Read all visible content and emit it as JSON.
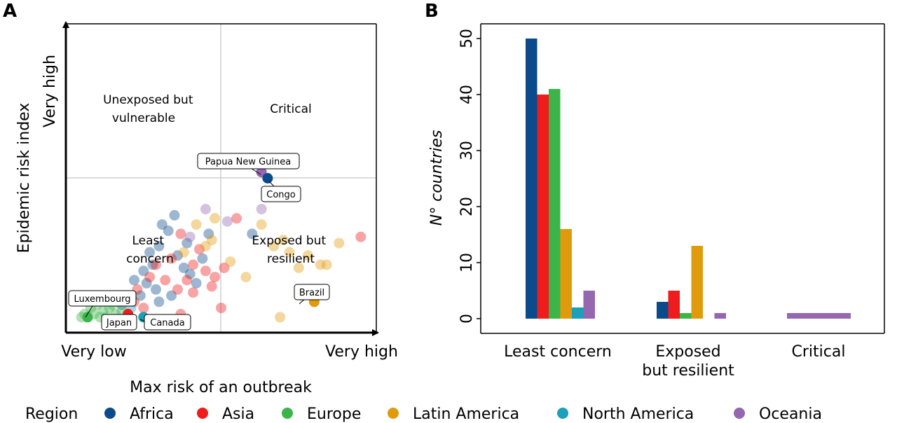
{
  "panels": {
    "a": {
      "letter": "A"
    },
    "b": {
      "letter": "B"
    }
  },
  "legend": {
    "title": "Region",
    "items": [
      {
        "name": "Africa",
        "color": "#0b4a8b"
      },
      {
        "name": "Asia",
        "color": "#ee1c1c"
      },
      {
        "name": "Europe",
        "color": "#3bb54a"
      },
      {
        "name": "Latin America",
        "color": "#e09b0d"
      },
      {
        "name": "North America",
        "color": "#1aa0b8"
      },
      {
        "name": "Oceania",
        "color": "#9467b0"
      }
    ]
  },
  "chart_data": [
    {
      "id": "A",
      "type": "scatter",
      "xlabel": "Max risk of an outbreak",
      "ylabel": "Epidemic risk index",
      "x_tick_labels": [
        "Very low",
        "Very high"
      ],
      "y_tick_labels": [
        "Very high"
      ],
      "xlim": [
        0,
        1
      ],
      "ylim": [
        0,
        1
      ],
      "thresholds": {
        "x": 0.5,
        "y": 0.5
      },
      "quadrant_labels": {
        "top_left": [
          "Unexposed but",
          "vulnerable"
        ],
        "top_right": [
          "Critical"
        ],
        "bottom_left": [
          "Least",
          "concern"
        ],
        "bottom_right": [
          "Exposed but",
          "resilient"
        ]
      },
      "highlighted": [
        {
          "label": "Papua New Guinea",
          "region": "Oceania",
          "x": 0.63,
          "y": 0.52
        },
        {
          "label": "Congo",
          "region": "Africa",
          "x": 0.65,
          "y": 0.5
        },
        {
          "label": "Brazil",
          "region": "Latin America",
          "x": 0.8,
          "y": 0.1
        },
        {
          "label": "Luxembourg",
          "region": "Europe",
          "x": 0.07,
          "y": 0.05
        },
        {
          "label": "Japan",
          "region": "Asia",
          "x": 0.2,
          "y": 0.06
        },
        {
          "label": "Canada",
          "region": "North America",
          "x": 0.25,
          "y": 0.05
        }
      ],
      "points": [
        {
          "region": "Africa",
          "x": 0.22,
          "y": 0.17
        },
        {
          "region": "Africa",
          "x": 0.25,
          "y": 0.2
        },
        {
          "region": "Africa",
          "x": 0.28,
          "y": 0.22
        },
        {
          "region": "Africa",
          "x": 0.3,
          "y": 0.28
        },
        {
          "region": "Africa",
          "x": 0.33,
          "y": 0.33
        },
        {
          "region": "Africa",
          "x": 0.35,
          "y": 0.38
        },
        {
          "region": "Africa",
          "x": 0.31,
          "y": 0.35
        },
        {
          "region": "Africa",
          "x": 0.27,
          "y": 0.26
        },
        {
          "region": "Africa",
          "x": 0.24,
          "y": 0.12
        },
        {
          "region": "Africa",
          "x": 0.2,
          "y": 0.12
        },
        {
          "region": "Africa",
          "x": 0.18,
          "y": 0.09
        },
        {
          "region": "Africa",
          "x": 0.36,
          "y": 0.25
        },
        {
          "region": "Africa",
          "x": 0.38,
          "y": 0.21
        },
        {
          "region": "Africa",
          "x": 0.4,
          "y": 0.19
        },
        {
          "region": "Africa",
          "x": 0.42,
          "y": 0.16
        },
        {
          "region": "Africa",
          "x": 0.44,
          "y": 0.24
        },
        {
          "region": "Africa",
          "x": 0.46,
          "y": 0.32
        },
        {
          "region": "Africa",
          "x": 0.39,
          "y": 0.29
        },
        {
          "region": "Africa",
          "x": 0.34,
          "y": 0.12
        },
        {
          "region": "Africa",
          "x": 0.3,
          "y": 0.1
        },
        {
          "region": "Africa",
          "x": 0.15,
          "y": 0.11
        },
        {
          "region": "Africa",
          "x": 0.29,
          "y": 0.14
        },
        {
          "region": "Africa",
          "x": 0.6,
          "y": 0.32
        },
        {
          "region": "Africa",
          "x": 0.26,
          "y": 0.16
        },
        {
          "region": "Asia",
          "x": 0.23,
          "y": 0.14
        },
        {
          "region": "Asia",
          "x": 0.27,
          "y": 0.18
        },
        {
          "region": "Asia",
          "x": 0.32,
          "y": 0.17
        },
        {
          "region": "Asia",
          "x": 0.36,
          "y": 0.14
        },
        {
          "region": "Asia",
          "x": 0.41,
          "y": 0.22
        },
        {
          "region": "Asia",
          "x": 0.43,
          "y": 0.27
        },
        {
          "region": "Asia",
          "x": 0.45,
          "y": 0.2
        },
        {
          "region": "Asia",
          "x": 0.48,
          "y": 0.18
        },
        {
          "region": "Asia",
          "x": 0.51,
          "y": 0.21
        },
        {
          "region": "Asia",
          "x": 0.55,
          "y": 0.37
        },
        {
          "region": "Asia",
          "x": 0.37,
          "y": 0.32
        },
        {
          "region": "Asia",
          "x": 0.29,
          "y": 0.22
        },
        {
          "region": "Asia",
          "x": 0.22,
          "y": 0.1
        },
        {
          "region": "Asia",
          "x": 0.5,
          "y": 0.08
        },
        {
          "region": "Asia",
          "x": 0.37,
          "y": 0.06
        },
        {
          "region": "Asia",
          "x": 0.25,
          "y": 0.08
        },
        {
          "region": "Asia",
          "x": 0.19,
          "y": 0.12
        },
        {
          "region": "Asia",
          "x": 0.34,
          "y": 0.24
        },
        {
          "region": "Asia",
          "x": 0.41,
          "y": 0.13
        },
        {
          "region": "Asia",
          "x": 0.47,
          "y": 0.15
        },
        {
          "region": "Asia",
          "x": 0.95,
          "y": 0.31
        },
        {
          "region": "Asia",
          "x": 0.39,
          "y": 0.17
        },
        {
          "region": "Europe",
          "x": 0.06,
          "y": 0.06
        },
        {
          "region": "Europe",
          "x": 0.09,
          "y": 0.06
        },
        {
          "region": "Europe",
          "x": 0.12,
          "y": 0.07
        },
        {
          "region": "Europe",
          "x": 0.14,
          "y": 0.08
        },
        {
          "region": "Europe",
          "x": 0.1,
          "y": 0.09
        },
        {
          "region": "Europe",
          "x": 0.16,
          "y": 0.06
        },
        {
          "region": "Europe",
          "x": 0.18,
          "y": 0.07
        },
        {
          "region": "Europe",
          "x": 0.13,
          "y": 0.05
        },
        {
          "region": "Europe",
          "x": 0.08,
          "y": 0.08
        },
        {
          "region": "Europe",
          "x": 0.05,
          "y": 0.05
        },
        {
          "region": "Europe",
          "x": 0.11,
          "y": 0.05
        },
        {
          "region": "Europe",
          "x": 0.15,
          "y": 0.09
        },
        {
          "region": "Latin America",
          "x": 0.38,
          "y": 0.26
        },
        {
          "region": "Latin America",
          "x": 0.42,
          "y": 0.35
        },
        {
          "region": "Latin America",
          "x": 0.45,
          "y": 0.28
        },
        {
          "region": "Latin America",
          "x": 0.47,
          "y": 0.3
        },
        {
          "region": "Latin America",
          "x": 0.53,
          "y": 0.23
        },
        {
          "region": "Latin America",
          "x": 0.58,
          "y": 0.18
        },
        {
          "region": "Latin America",
          "x": 0.63,
          "y": 0.35
        },
        {
          "region": "Latin America",
          "x": 0.7,
          "y": 0.3
        },
        {
          "region": "Latin America",
          "x": 0.72,
          "y": 0.26
        },
        {
          "region": "Latin America",
          "x": 0.75,
          "y": 0.21
        },
        {
          "region": "Latin America",
          "x": 0.78,
          "y": 0.25
        },
        {
          "region": "Latin America",
          "x": 0.82,
          "y": 0.22
        },
        {
          "region": "Latin America",
          "x": 0.84,
          "y": 0.22
        },
        {
          "region": "Latin America",
          "x": 0.88,
          "y": 0.29
        },
        {
          "region": "Latin America",
          "x": 0.76,
          "y": 0.12
        },
        {
          "region": "Latin America",
          "x": 0.69,
          "y": 0.05
        },
        {
          "region": "Latin America",
          "x": 0.8,
          "y": 0.12
        },
        {
          "region": "Latin America",
          "x": 0.48,
          "y": 0.37
        },
        {
          "region": "Latin America",
          "x": 0.67,
          "y": 0.28
        },
        {
          "region": "North America",
          "x": 0.17,
          "y": 0.1
        },
        {
          "region": "North America",
          "x": 0.21,
          "y": 0.08
        },
        {
          "region": "Oceania",
          "x": 0.45,
          "y": 0.4
        },
        {
          "region": "Oceania",
          "x": 0.52,
          "y": 0.36
        },
        {
          "region": "Oceania",
          "x": 0.63,
          "y": 0.4
        },
        {
          "region": "Oceania",
          "x": 0.4,
          "y": 0.31
        }
      ]
    },
    {
      "id": "B",
      "type": "bar",
      "ylabel": "N° countries",
      "categories": [
        "Least concern",
        "Exposed\nbut resilient",
        "Critical"
      ],
      "ylim": [
        0,
        50
      ],
      "yticks": [
        0,
        10,
        20,
        30,
        40,
        50
      ],
      "series": [
        {
          "name": "Africa",
          "values": [
            50,
            3,
            0
          ]
        },
        {
          "name": "Asia",
          "values": [
            40,
            5,
            0
          ]
        },
        {
          "name": "Europe",
          "values": [
            41,
            1,
            0
          ]
        },
        {
          "name": "Latin America",
          "values": [
            16,
            13,
            0
          ]
        },
        {
          "name": "North America",
          "values": [
            2,
            0,
            0
          ]
        },
        {
          "name": "Oceania",
          "values": [
            5,
            1,
            1
          ]
        }
      ]
    }
  ]
}
